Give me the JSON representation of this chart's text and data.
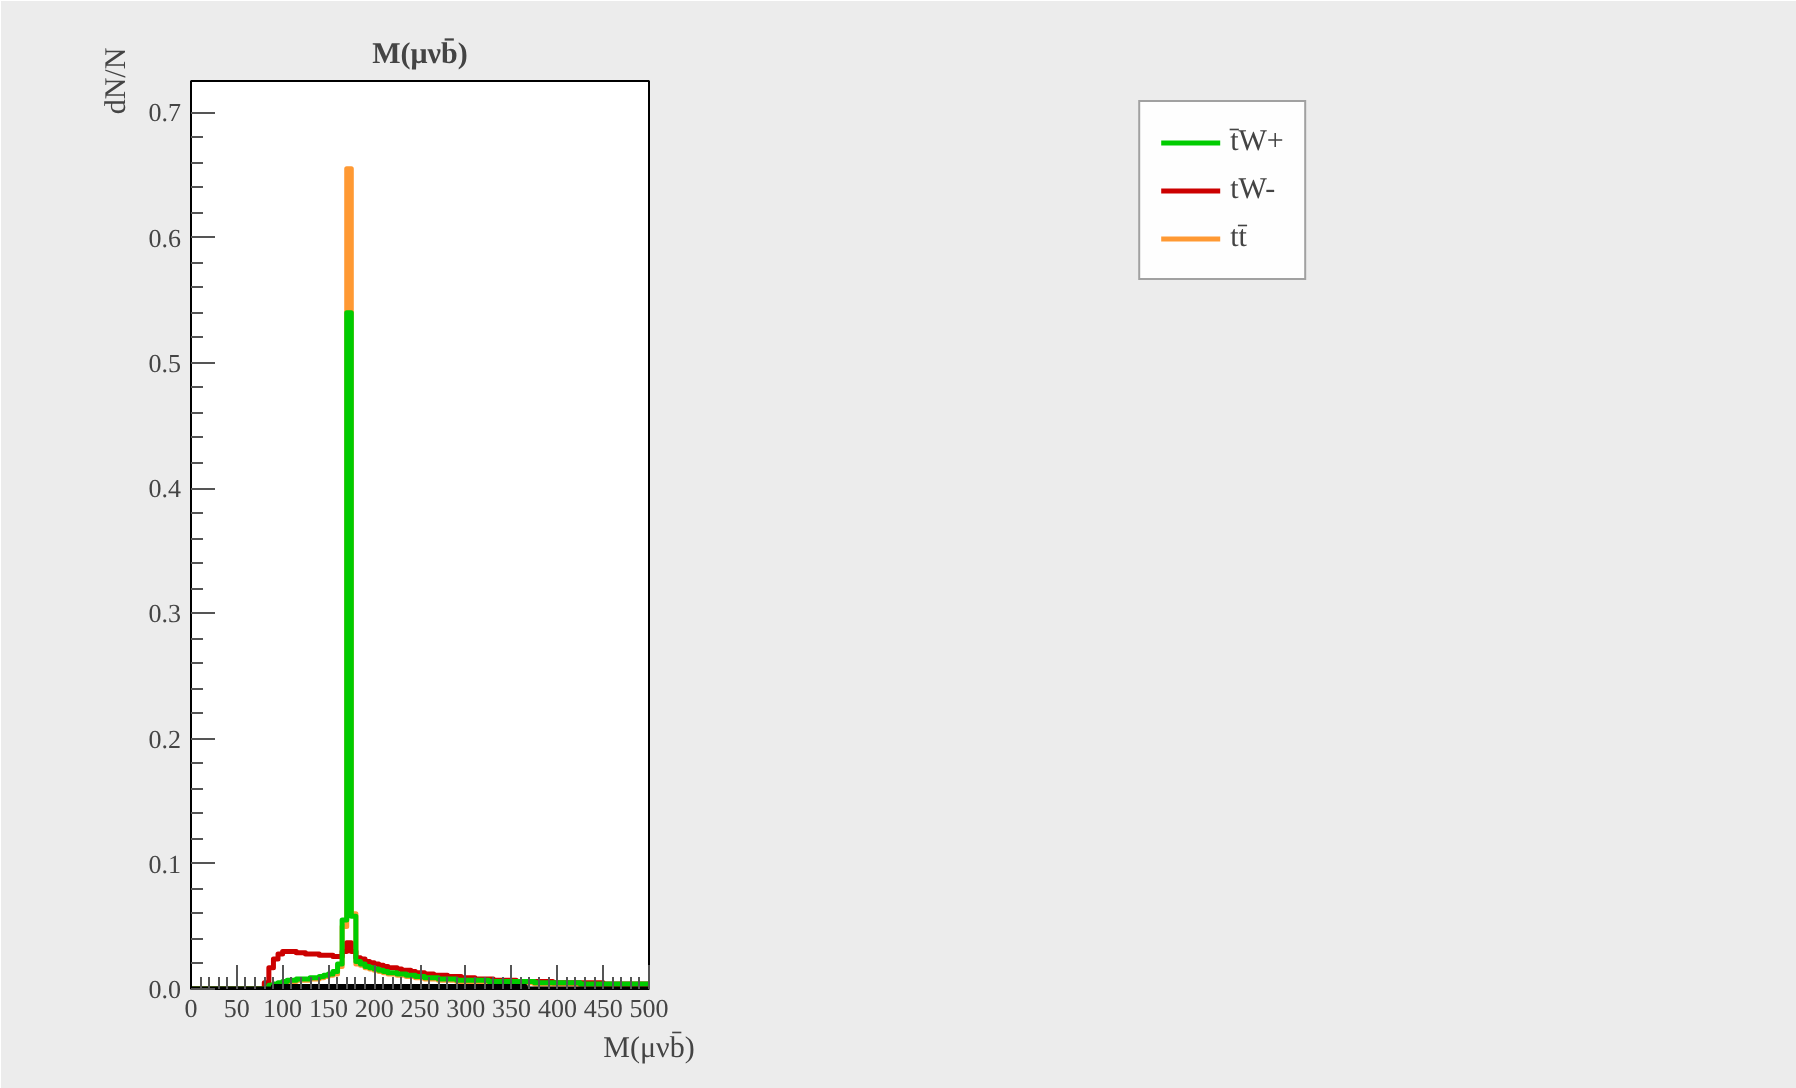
{
  "chart_data": {
    "type": "histogram",
    "title": "M(μνb̄)",
    "xlabel": "M(μνb̄)",
    "ylabel": "dN/N",
    "bins": [
      0,
      5,
      10,
      15,
      20,
      25,
      30,
      35,
      40,
      45,
      50,
      55,
      60,
      65,
      70,
      75,
      80,
      85,
      90,
      95,
      100,
      105,
      110,
      115,
      120,
      125,
      130,
      135,
      140,
      145,
      150,
      155,
      160,
      165,
      170,
      175,
      180,
      185,
      190,
      195,
      200,
      205,
      210,
      215,
      220,
      225,
      230,
      235,
      240,
      245,
      250,
      255,
      260,
      265,
      270,
      275,
      280,
      285,
      290,
      295,
      300,
      305,
      310,
      315,
      320,
      325,
      330,
      335,
      340,
      345,
      350,
      355,
      360,
      365,
      370,
      375,
      380,
      385,
      390,
      395,
      400,
      405,
      410,
      415,
      420,
      425,
      430,
      435,
      440,
      445,
      450,
      455,
      460,
      465,
      470,
      475,
      480,
      485,
      490,
      495,
      500
    ],
    "series": [
      {
        "name": "tt̄",
        "color": "#ff9933",
        "values": [
          0,
          0,
          0,
          0,
          0,
          0,
          0,
          0,
          0,
          0,
          0,
          0,
          0,
          0,
          0,
          0,
          0,
          0.002,
          0.003,
          0.004,
          0.005,
          0.006,
          0.006,
          0.007,
          0.007,
          0.007,
          0.008,
          0.008,
          0.009,
          0.01,
          0.011,
          0.012,
          0.018,
          0.05,
          0.655,
          0.06,
          0.02,
          0.019,
          0.017,
          0.016,
          0.015,
          0.014,
          0.013,
          0.012,
          0.012,
          0.011,
          0.011,
          0.01,
          0.01,
          0.009,
          0.009,
          0.008,
          0.008,
          0.008,
          0.007,
          0.007,
          0.007,
          0.007,
          0.006,
          0.006,
          0.006,
          0.006,
          0.006,
          0.006,
          0.006,
          0.005,
          0.005,
          0.005,
          0.005,
          0.005,
          0.005,
          0.005,
          0.005,
          0.005,
          0.005,
          0.004,
          0.004,
          0.004,
          0.004,
          0.004,
          0.004,
          0.004,
          0.004,
          0.004,
          0.004,
          0.003,
          0.003,
          0.003,
          0.003,
          0.003,
          0.003,
          0.003,
          0.003,
          0.003,
          0.003,
          0.003,
          0.003,
          0.003,
          0.003,
          0.003
        ]
      },
      {
        "name": "tW-",
        "color": "#cc0000",
        "values": [
          0,
          0,
          0,
          0,
          0,
          0,
          0,
          0,
          0,
          0,
          0,
          0,
          0,
          0,
          0,
          0,
          0.005,
          0.017,
          0.024,
          0.028,
          0.03,
          0.03,
          0.03,
          0.029,
          0.029,
          0.028,
          0.028,
          0.028,
          0.027,
          0.027,
          0.027,
          0.026,
          0.026,
          0.03,
          0.037,
          0.03,
          0.025,
          0.024,
          0.022,
          0.021,
          0.02,
          0.019,
          0.018,
          0.017,
          0.017,
          0.016,
          0.015,
          0.015,
          0.014,
          0.013,
          0.013,
          0.012,
          0.012,
          0.011,
          0.011,
          0.011,
          0.01,
          0.01,
          0.01,
          0.009,
          0.009,
          0.009,
          0.008,
          0.008,
          0.008,
          0.008,
          0.007,
          0.007,
          0.007,
          0.007,
          0.007,
          0.006,
          0.006,
          0.006,
          0.006,
          0.006,
          0.006,
          0.006,
          0.006,
          0.005,
          0.005,
          0.005,
          0.005,
          0.005,
          0.005,
          0.005,
          0.005,
          0.005,
          0.005,
          0.005,
          0.004,
          0.004,
          0.004,
          0.004,
          0.004,
          0.004,
          0.004,
          0.004,
          0.004,
          0.004
        ]
      },
      {
        "name": "t̄W+",
        "color": "#00cc00",
        "values": [
          0,
          0,
          0,
          0,
          0,
          0,
          0,
          0,
          0,
          0,
          0,
          0,
          0,
          0,
          0,
          0,
          0,
          0.003,
          0.004,
          0.005,
          0.006,
          0.007,
          0.007,
          0.008,
          0.008,
          0.008,
          0.009,
          0.009,
          0.01,
          0.011,
          0.012,
          0.014,
          0.02,
          0.055,
          0.54,
          0.058,
          0.022,
          0.02,
          0.018,
          0.017,
          0.016,
          0.015,
          0.014,
          0.013,
          0.013,
          0.012,
          0.012,
          0.011,
          0.011,
          0.01,
          0.01,
          0.009,
          0.009,
          0.009,
          0.008,
          0.008,
          0.008,
          0.008,
          0.007,
          0.007,
          0.007,
          0.007,
          0.007,
          0.007,
          0.007,
          0.006,
          0.006,
          0.006,
          0.006,
          0.006,
          0.006,
          0.006,
          0.006,
          0.006,
          0.006,
          0.005,
          0.005,
          0.005,
          0.005,
          0.005,
          0.005,
          0.005,
          0.005,
          0.005,
          0.005,
          0.004,
          0.004,
          0.004,
          0.004,
          0.004,
          0.004,
          0.004,
          0.004,
          0.004,
          0.004,
          0.004,
          0.004,
          0.004,
          0.004,
          0.004
        ]
      },
      {
        "color": "#000000",
        "values": [
          0,
          0,
          0,
          0,
          0,
          0,
          0,
          0,
          0,
          0,
          0,
          0,
          0,
          0,
          0,
          0,
          0,
          0,
          0.002,
          0.002,
          0.002,
          0.002,
          0.002,
          0.002,
          0.002,
          0.002,
          0.002,
          0.002,
          0.002,
          0.002,
          0.002,
          0.002,
          0.002,
          0.002,
          0.002,
          0.002,
          0.002,
          0.002,
          0.002,
          0.002,
          0.002,
          0.002,
          0.002,
          0.002,
          0.002,
          0.002,
          0.002,
          0.002,
          0.002,
          0.002,
          0.002,
          0.002,
          0.002,
          0.002,
          0.002,
          0.002,
          0.002,
          0.002,
          0.002,
          0.002,
          0.002,
          0.002,
          0.002,
          0.002,
          0.002,
          0.002,
          0.002,
          0.002,
          0.002,
          0.002,
          0.002,
          0.002,
          0.002,
          0,
          0,
          0,
          0,
          0,
          0,
          0,
          0,
          0,
          0,
          0,
          0,
          0,
          0,
          0,
          0,
          0,
          0,
          0,
          0,
          0,
          0,
          0,
          0,
          0,
          0,
          0
        ]
      }
    ],
    "xlim": [
      0,
      500
    ],
    "ylim": [
      0,
      0.725
    ],
    "xticks": [
      0,
      50,
      100,
      150,
      200,
      250,
      300,
      350,
      400,
      450,
      500
    ],
    "yticks": [
      {
        "value": 0,
        "label": "0.0"
      },
      0.1,
      0.2,
      0.3,
      0.4,
      0.5,
      0.6,
      0.7
    ],
    "grid": false,
    "legend": "top right"
  }
}
